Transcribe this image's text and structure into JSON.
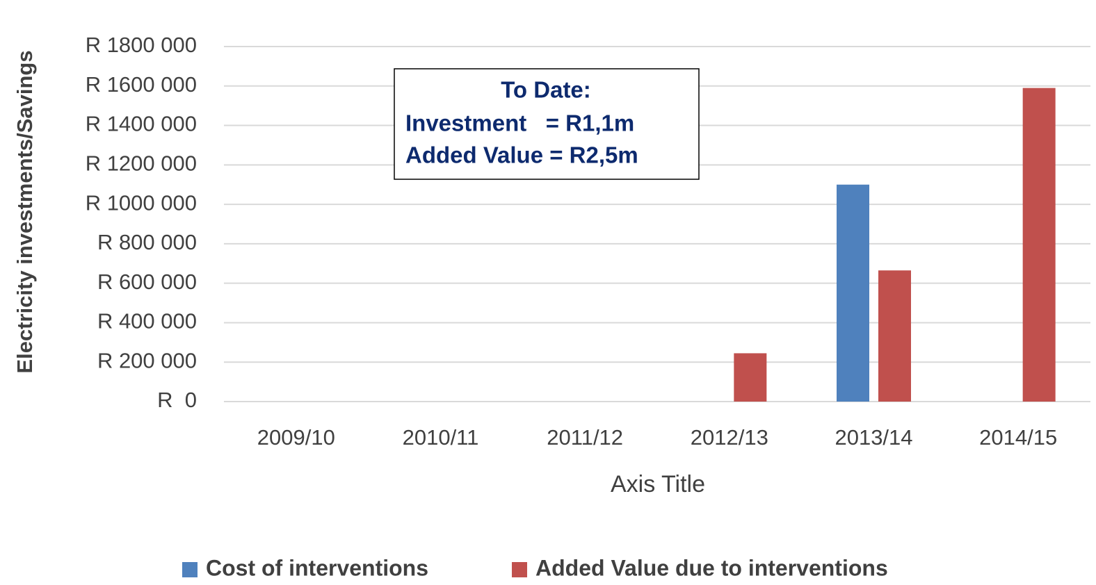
{
  "chart_data": {
    "type": "bar",
    "categories": [
      "2009/10",
      "2010/11",
      "2011/12",
      "2012/13",
      "2013/14",
      "2014/15"
    ],
    "series": [
      {
        "name": "Cost of interventions",
        "color": "#4f81bd",
        "values": [
          0,
          0,
          0,
          0,
          1100000,
          0
        ]
      },
      {
        "name": "Added Value due to interventions",
        "color": "#c0504d",
        "values": [
          0,
          0,
          0,
          245000,
          665000,
          1590000
        ]
      }
    ],
    "ylabel": "Electricity investments/Savings",
    "xlabel": "Axis Title",
    "annotation": [
      "To Date:",
      "Investment   = R1,1m",
      "Added Value = R2,5m"
    ],
    "ylim": [
      0,
      1800000
    ],
    "yticks": [
      {
        "value": 0,
        "label": "R  0"
      },
      {
        "value": 200000,
        "label": "R 200 000"
      },
      {
        "value": 400000,
        "label": "R 400 000"
      },
      {
        "value": 600000,
        "label": "R 600 000"
      },
      {
        "value": 800000,
        "label": "R 800 000"
      },
      {
        "value": 1000000,
        "label": "R 1000 000"
      },
      {
        "value": 1200000,
        "label": "R 1200 000"
      },
      {
        "value": 1400000,
        "label": "R 1400 000"
      },
      {
        "value": 1600000,
        "label": "R 1600 000"
      },
      {
        "value": 1800000,
        "label": "R 1800 000"
      }
    ],
    "grid": true,
    "legend": "bottom"
  }
}
